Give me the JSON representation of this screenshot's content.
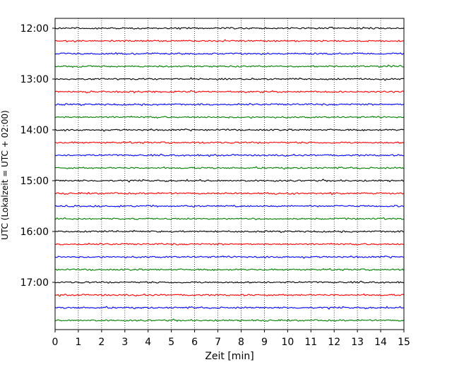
{
  "chart_data": {
    "type": "line",
    "title": "",
    "xlabel": "Zeit  [min]",
    "ylabel": "UTC (Lokalzeit = UTC + 02:00)",
    "xlim": [
      0,
      15
    ],
    "x_ticks": [
      "0",
      "1",
      "2",
      "3",
      "4",
      "5",
      "6",
      "7",
      "8",
      "9",
      "10",
      "11",
      "12",
      "13",
      "14",
      "15"
    ],
    "y_ticks": [
      "12:00",
      "13:00",
      "14:00",
      "15:00",
      "16:00",
      "17:00"
    ],
    "grid": "vertical dotted lines at each minute",
    "trace_interval_min": 15,
    "traces": [
      {
        "start": "12:00",
        "color": "#000000"
      },
      {
        "start": "12:15",
        "color": "#ff0000"
      },
      {
        "start": "12:30",
        "color": "#0000ff"
      },
      {
        "start": "12:45",
        "color": "#008000"
      },
      {
        "start": "13:00",
        "color": "#000000"
      },
      {
        "start": "13:15",
        "color": "#ff0000"
      },
      {
        "start": "13:30",
        "color": "#0000ff"
      },
      {
        "start": "13:45",
        "color": "#008000"
      },
      {
        "start": "14:00",
        "color": "#000000"
      },
      {
        "start": "14:15",
        "color": "#ff0000"
      },
      {
        "start": "14:30",
        "color": "#0000ff"
      },
      {
        "start": "14:45",
        "color": "#008000"
      },
      {
        "start": "15:00",
        "color": "#000000"
      },
      {
        "start": "15:15",
        "color": "#ff0000"
      },
      {
        "start": "15:30",
        "color": "#0000ff"
      },
      {
        "start": "15:45",
        "color": "#008000"
      },
      {
        "start": "16:00",
        "color": "#000000"
      },
      {
        "start": "16:15",
        "color": "#ff0000"
      },
      {
        "start": "16:30",
        "color": "#0000ff"
      },
      {
        "start": "16:45",
        "color": "#008000"
      },
      {
        "start": "17:00",
        "color": "#000000"
      },
      {
        "start": "17:15",
        "color": "#ff0000"
      },
      {
        "start": "17:30",
        "color": "#0000ff"
      },
      {
        "start": "17:45",
        "color": "#008000"
      }
    ]
  }
}
